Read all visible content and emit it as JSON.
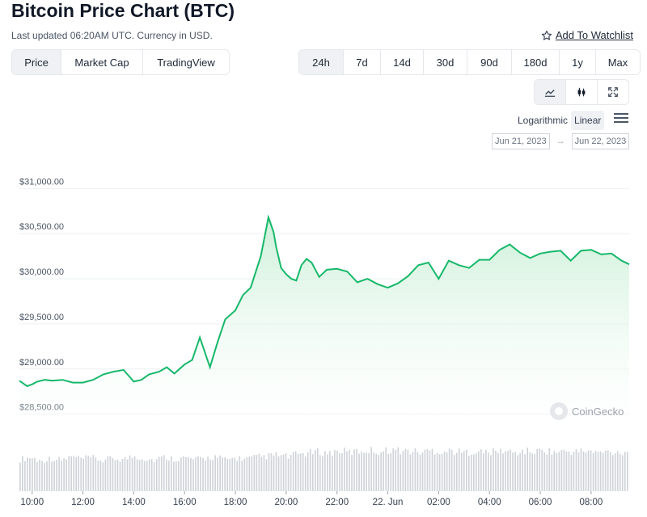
{
  "header": {
    "title": "Bitcoin Price Chart (BTC)",
    "subtitle": "Last updated 06:20AM UTC. Currency in USD.",
    "watchlist": "Add To Watchlist"
  },
  "views": [
    "Price",
    "Market Cap",
    "TradingView"
  ],
  "ranges": [
    "24h",
    "7d",
    "14d",
    "30d",
    "90d",
    "180d",
    "1y",
    "Max"
  ],
  "modes": [
    "line-chart-icon",
    "candlestick-icon",
    "fullscreen-icon"
  ],
  "scale": {
    "log": "Logarithmic",
    "linear": "Linear"
  },
  "date_range": {
    "from": "Jun 21, 2023",
    "arrow": "→",
    "to": "Jun 22, 2023"
  },
  "watermark": "CoinGecko",
  "colors": {
    "line": "#16b86a",
    "fill_top": "#c9efd6",
    "volume": "#cfd3d8",
    "active_bg": "#eff1f4"
  },
  "chart_data": {
    "type": "area",
    "ylim": [
      28300,
      31200
    ],
    "yticks": [
      28500,
      29000,
      29500,
      30000,
      30500,
      31000
    ],
    "ytick_labels": [
      "$28,500.00",
      "$29,000.00",
      "$29,500.00",
      "$30,000.00",
      "$30,500.00",
      "$31,000.00"
    ],
    "xlim": [
      9.5,
      33.5
    ],
    "xticks": [
      10,
      12,
      14,
      16,
      18,
      20,
      22,
      24,
      26,
      28,
      30,
      32
    ],
    "xtick_labels": [
      "10:00",
      "12:00",
      "14:00",
      "16:00",
      "18:00",
      "20:00",
      "22:00",
      "22. Jun",
      "02:00",
      "04:00",
      "06:00",
      "08:00"
    ],
    "grid": true,
    "series": [
      {
        "x": [
          9.5,
          9.8,
          10.0,
          10.2,
          10.5,
          10.8,
          11.2,
          11.6,
          12.0,
          12.4,
          12.8,
          13.2,
          13.6,
          14.0,
          14.3,
          14.6,
          15.0,
          15.3,
          15.6,
          16.0,
          16.3,
          16.6,
          17.0,
          17.3,
          17.6,
          18.0,
          18.3,
          18.6,
          19.0,
          19.3,
          19.5,
          19.6,
          19.8,
          20.0,
          20.2,
          20.4,
          20.6,
          20.8,
          21.0,
          21.3,
          21.6,
          22.0,
          22.4,
          22.8,
          23.2,
          23.6,
          24.0,
          24.4,
          24.8,
          25.2,
          25.6,
          26.0,
          26.4,
          26.8,
          27.2,
          27.6,
          28.0,
          28.4,
          28.8,
          29.2,
          29.6,
          30.0,
          30.4,
          30.8,
          31.2,
          31.6,
          32.0,
          32.4,
          32.8,
          33.2,
          33.5
        ],
        "y": [
          28870,
          28810,
          28830,
          28860,
          28880,
          28870,
          28880,
          28850,
          28850,
          28880,
          28940,
          28970,
          28990,
          28860,
          28880,
          28940,
          28970,
          29020,
          28950,
          29050,
          29100,
          29350,
          29020,
          29300,
          29550,
          29650,
          29820,
          29900,
          30250,
          30680,
          30520,
          30360,
          30120,
          30050,
          30000,
          29980,
          30150,
          30220,
          30180,
          30020,
          30100,
          30110,
          30080,
          29960,
          30000,
          29940,
          29900,
          29950,
          30030,
          30150,
          30180,
          30000,
          30200,
          30150,
          30120,
          30210,
          30210,
          30320,
          30380,
          30290,
          30230,
          30280,
          30300,
          30310,
          30200,
          30310,
          30320,
          30270,
          30280,
          30200,
          30160
        ]
      }
    ],
    "volume_values": [
      0.58,
      0.62,
      0.55,
      0.6,
      0.57,
      0.63,
      0.59,
      0.61,
      0.56,
      0.6,
      0.58,
      0.64,
      0.6,
      0.57,
      0.62,
      0.59,
      0.61,
      0.58,
      0.6,
      0.63,
      0.57,
      0.61,
      0.59,
      0.62,
      0.64,
      0.66,
      0.63,
      0.68,
      0.7,
      0.72,
      0.69,
      0.74,
      0.71,
      0.73,
      0.75,
      0.72,
      0.76,
      0.74,
      0.73,
      0.71,
      0.75,
      0.72,
      0.74,
      0.7,
      0.73,
      0.71,
      0.72,
      0.74,
      0.7,
      0.73,
      0.72,
      0.75,
      0.71,
      0.73,
      0.72,
      0.74,
      0.7,
      0.72,
      0.71,
      0.73
    ]
  }
}
